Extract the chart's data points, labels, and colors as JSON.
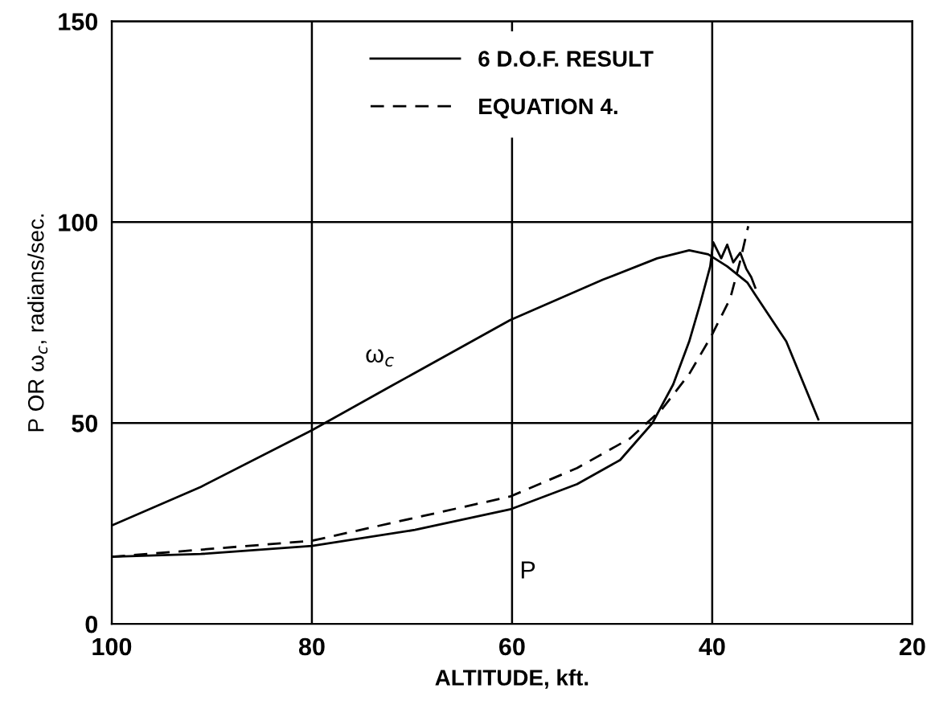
{
  "chart_data": {
    "type": "line",
    "xlabel": "ALTITUDE, kft.",
    "ylabel": "P OR ω$_{c}$, radians/sec.",
    "xlim": [
      100,
      20
    ],
    "ylim": [
      0,
      150
    ],
    "xticks": [
      100,
      80,
      60,
      40,
      20
    ],
    "yticks": [
      0,
      50,
      100,
      150
    ],
    "grid": true,
    "legend": "top",
    "marker": "none",
    "series": [
      {
        "name": "6 D.O.F. RESULT",
        "color": "#000000",
        "line_style": "solid",
        "x": [
          100,
          91.1,
          80,
          72.3,
          60.2,
          50.9,
          45.5,
          42.3,
          40.4,
          38.5,
          36.5,
          35.8,
          32.6,
          29.4
        ],
        "values": [
          24.5,
          34.1,
          48.2,
          58.9,
          75.6,
          85.7,
          91,
          93,
          92,
          89,
          85,
          82.3,
          70.3,
          50.9
        ]
      },
      {
        "color": "#000000",
        "line_style": "solid",
        "x": [
          100,
          91.1,
          80,
          69.7,
          60.2,
          53.5,
          49.2,
          46,
          43.9,
          42.3,
          41.2,
          40.2,
          39.9,
          39.1,
          38.5,
          37.9,
          37.2,
          36.6,
          36.1,
          35.7
        ],
        "values": [
          16.7,
          17.4,
          19.4,
          23.4,
          28.5,
          34.8,
          40.8,
          49.9,
          59.6,
          70.3,
          79.7,
          89,
          95,
          91,
          94.4,
          90,
          92.4,
          88.4,
          86.3,
          83.7
        ]
      },
      {
        "name": "EQUATION 4.",
        "color": "#000000",
        "line_style": "dashed",
        "x": [
          100,
          80,
          60.2,
          53.5,
          48.2,
          45,
          42.3,
          40.1,
          38.2,
          37.2,
          36.4
        ],
        "values": [
          16.7,
          20.7,
          31.7,
          38.8,
          46.2,
          53.5,
          62.2,
          71.6,
          81,
          90.4,
          99
        ]
      }
    ],
    "annotations": [
      "ω$_{c}$",
      "P"
    ]
  }
}
